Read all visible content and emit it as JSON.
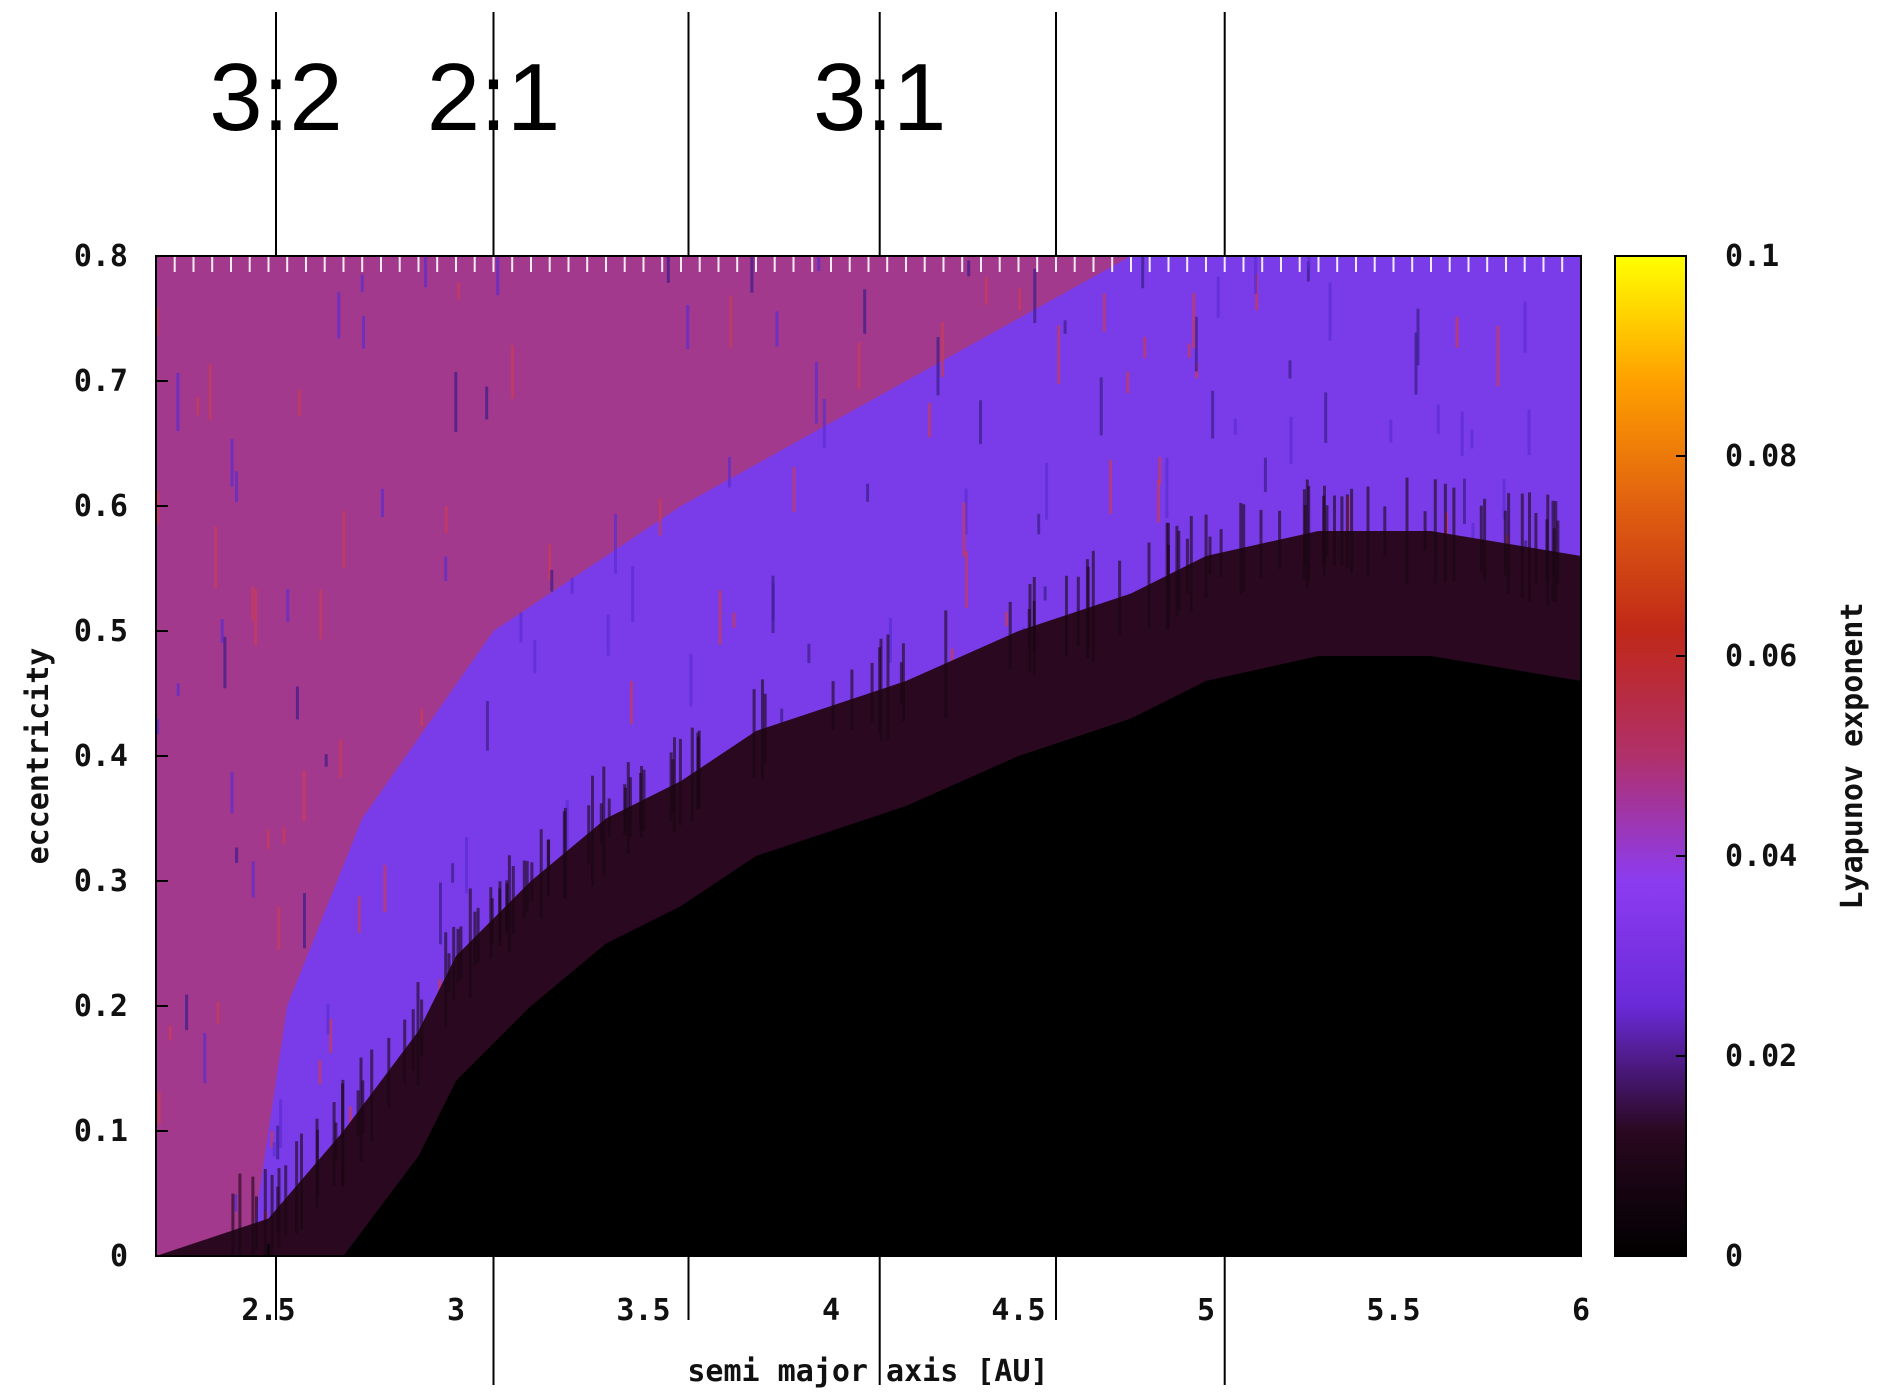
{
  "chart_data": {
    "type": "heatmap",
    "xlabel": "semi major axis [AU]",
    "ylabel": "eccentricity",
    "xlim": [
      2.2,
      6.0
    ],
    "ylim": [
      0,
      0.8
    ],
    "xticks": [
      2.5,
      3,
      3.5,
      4,
      4.5,
      5,
      5.5,
      6
    ],
    "xtick_labels": [
      "2.5",
      "3",
      "3.5",
      "4",
      "4.5",
      "5",
      "5.5",
      "6"
    ],
    "yticks": [
      0,
      0.1,
      0.2,
      0.3,
      0.4,
      0.5,
      0.6,
      0.7,
      0.8
    ],
    "ytick_labels": [
      "0",
      "0.1",
      "0.2",
      "0.3",
      "0.4",
      "0.5",
      "0.6",
      "0.7",
      "0.8"
    ],
    "colorbar": {
      "label": "Lyapunov exponent",
      "range": [
        0,
        0.1
      ],
      "ticks": [
        0,
        0.02,
        0.04,
        0.06,
        0.08,
        0.1
      ],
      "tick_labels": [
        "0",
        "0.02",
        "0.04",
        "0.06",
        "0.08",
        "0.1"
      ],
      "stops": [
        "#000000",
        "#2a0820",
        "#6a2ad8",
        "#8c3cf0",
        "#b0306a",
        "#c02818",
        "#e06010",
        "#ffa000",
        "#ffff00"
      ]
    },
    "chaos_boundary": {
      "a": [
        2.2,
        2.5,
        2.7,
        2.9,
        3.0,
        3.2,
        3.4,
        3.6,
        3.8,
        4.0,
        4.2,
        4.5,
        4.8,
        5.0,
        5.3,
        5.6,
        6.0
      ],
      "e": [
        0.0,
        0.03,
        0.1,
        0.18,
        0.24,
        0.3,
        0.35,
        0.38,
        0.42,
        0.44,
        0.46,
        0.5,
        0.53,
        0.56,
        0.58,
        0.58,
        0.56
      ]
    },
    "resonance_lines_a": [
      2.52,
      3.1,
      3.62,
      4.13,
      4.6,
      5.05
    ],
    "resonance_labels": [
      {
        "text": "3:2",
        "a": 2.52
      },
      {
        "text": "2:1",
        "a": 3.1
      },
      {
        "text": "3:1",
        "a": 4.13
      }
    ]
  },
  "colors": {
    "background": "#ffffff",
    "axis": "#000000"
  }
}
